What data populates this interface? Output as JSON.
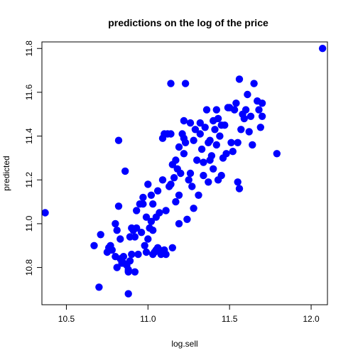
{
  "chart_data": {
    "type": "scatter",
    "title": "predictions on the log of the price",
    "xlabel": "log.sell",
    "ylabel": "predicted",
    "xlim": [
      10.35,
      12.1
    ],
    "ylim": [
      10.63,
      11.83
    ],
    "xticks": [
      10.5,
      11.0,
      11.5,
      12.0
    ],
    "xtick_labels": [
      "10.5",
      "11.0",
      "11.5",
      "12.0"
    ],
    "yticks": [
      10.8,
      11.0,
      11.2,
      11.4,
      11.6,
      11.8
    ],
    "ytick_labels": [
      "10.8",
      "11.0",
      "11.2",
      "11.4",
      "11.6",
      "11.8"
    ],
    "grid": false,
    "point_color": "#0000ff",
    "x": [
      10.37,
      10.67,
      10.7,
      10.71,
      10.75,
      10.76,
      10.77,
      10.78,
      10.8,
      10.8,
      10.81,
      10.81,
      10.82,
      10.82,
      10.83,
      10.83,
      10.84,
      10.85,
      10.86,
      10.87,
      10.88,
      10.88,
      10.89,
      10.89,
      10.9,
      10.9,
      10.91,
      10.92,
      10.93,
      10.94,
      10.95,
      10.96,
      10.97,
      10.97,
      10.98,
      10.99,
      10.99,
      11.0,
      11.0,
      11.01,
      11.02,
      11.02,
      11.03,
      11.03,
      11.04,
      11.05,
      11.05,
      11.06,
      11.06,
      11.07,
      11.07,
      11.08,
      11.09,
      11.09,
      11.1,
      11.1,
      11.11,
      11.12,
      11.13,
      11.14,
      11.14,
      11.15,
      11.15,
      11.16,
      11.17,
      11.17,
      11.18,
      11.19,
      11.19,
      11.2,
      11.21,
      11.22,
      11.22,
      11.23,
      11.23,
      11.24,
      11.25,
      11.26,
      11.27,
      11.28,
      11.28,
      11.29,
      11.3,
      11.31,
      11.32,
      11.32,
      11.33,
      11.34,
      11.34,
      11.35,
      11.36,
      11.37,
      11.37,
      11.38,
      11.38,
      11.39,
      11.4,
      11.4,
      11.41,
      11.42,
      11.42,
      11.43,
      11.43,
      11.44,
      11.45,
      11.46,
      11.47,
      11.48,
      11.49,
      11.5,
      11.51,
      11.52,
      11.53,
      11.54,
      11.55,
      11.56,
      11.57,
      11.58,
      11.59,
      11.6,
      11.61,
      11.62,
      11.63,
      11.64,
      11.65,
      11.67,
      11.68,
      11.69,
      11.7,
      11.7,
      11.79,
      12.07,
      11.14,
      11.22,
      10.85,
      10.88,
      11.56,
      11.55,
      10.92,
      10.93,
      11.19,
      11.45,
      11.26,
      11.03,
      11.11
    ],
    "y": [
      11.05,
      10.9,
      10.71,
      10.95,
      10.87,
      10.89,
      10.9,
      10.88,
      11.0,
      10.85,
      10.97,
      10.8,
      11.08,
      11.38,
      10.84,
      10.93,
      10.82,
      10.85,
      11.24,
      10.81,
      10.79,
      10.68,
      10.83,
      10.94,
      10.86,
      10.98,
      10.97,
      10.78,
      10.98,
      10.86,
      11.09,
      10.96,
      11.12,
      11.09,
      10.9,
      10.87,
      11.03,
      10.93,
      11.18,
      10.98,
      11.01,
      11.13,
      10.97,
      10.86,
      10.87,
      10.88,
      11.03,
      10.89,
      11.15,
      10.88,
      11.05,
      10.86,
      11.2,
      11.39,
      10.88,
      11.41,
      11.06,
      11.41,
      11.17,
      11.18,
      11.64,
      10.89,
      11.27,
      11.21,
      11.29,
      11.1,
      11.25,
      11.0,
      11.13,
      11.23,
      11.41,
      11.32,
      11.47,
      11.64,
      11.37,
      11.02,
      11.2,
      11.46,
      11.17,
      11.07,
      11.38,
      11.43,
      11.29,
      11.13,
      11.46,
      11.41,
      11.34,
      11.22,
      11.28,
      11.44,
      11.52,
      11.37,
      11.19,
      11.38,
      11.29,
      11.31,
      11.25,
      11.47,
      11.43,
      11.36,
      11.52,
      11.48,
      11.2,
      11.4,
      11.22,
      11.3,
      11.45,
      11.32,
      11.53,
      11.53,
      11.37,
      11.33,
      11.52,
      11.55,
      11.37,
      11.66,
      11.43,
      11.5,
      11.48,
      11.52,
      11.59,
      11.42,
      11.49,
      11.36,
      11.64,
      11.56,
      11.52,
      11.44,
      11.55,
      11.49,
      11.32,
      11.8,
      11.41,
      11.39,
      10.82,
      10.78,
      11.16,
      11.19,
      10.94,
      11.06,
      11.35,
      11.45,
      11.23,
      11.09,
      10.86
    ]
  }
}
